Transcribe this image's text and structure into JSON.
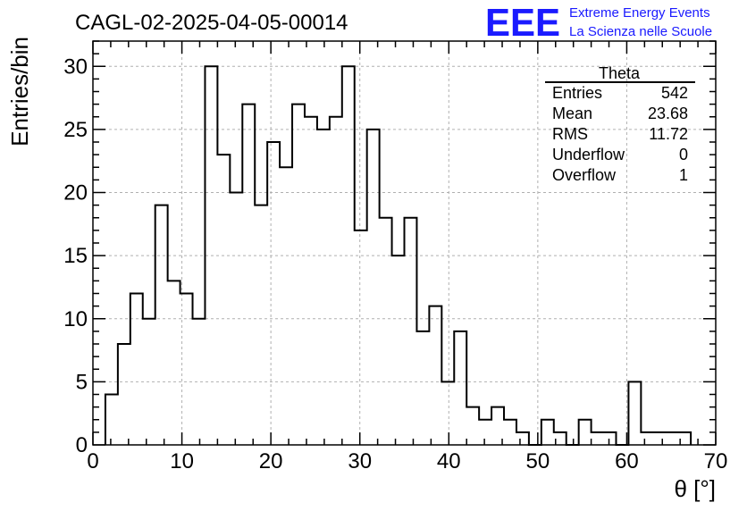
{
  "title": "CAGL-02-2025-04-05-00014",
  "logo": {
    "mark": "EEE",
    "line1": "Extreme Energy Events",
    "line2": "La Scienza nelle Scuole",
    "color": "#1a1aff"
  },
  "stats": {
    "name": "Theta",
    "rows": [
      {
        "label": "Entries",
        "value": "542"
      },
      {
        "label": "Mean",
        "value": "23.68"
      },
      {
        "label": "RMS",
        "value": "11.72"
      },
      {
        "label": "Underflow",
        "value": "0"
      },
      {
        "label": "Overflow",
        "value": "1"
      }
    ]
  },
  "chart_data": {
    "type": "histogram",
    "xlabel": "θ [°]",
    "ylabel": "Entries/bin",
    "xlim": [
      0,
      70
    ],
    "ylim": [
      0,
      32
    ],
    "x_ticks": [
      0,
      10,
      20,
      30,
      40,
      50,
      60,
      70
    ],
    "y_ticks": [
      0,
      5,
      10,
      15,
      20,
      25,
      30
    ],
    "grid": true,
    "bin_start": 1.4,
    "bin_width": 1.4,
    "values": [
      4,
      8,
      12,
      10,
      19,
      13,
      12,
      10,
      30,
      23,
      20,
      27,
      19,
      24,
      22,
      27,
      26,
      25,
      26,
      30,
      17,
      25,
      18,
      15,
      18,
      9,
      11,
      5,
      9,
      3,
      2,
      3,
      2,
      1,
      0,
      2,
      1,
      0,
      2,
      1,
      1,
      0,
      5,
      1,
      1,
      1,
      1
    ]
  }
}
